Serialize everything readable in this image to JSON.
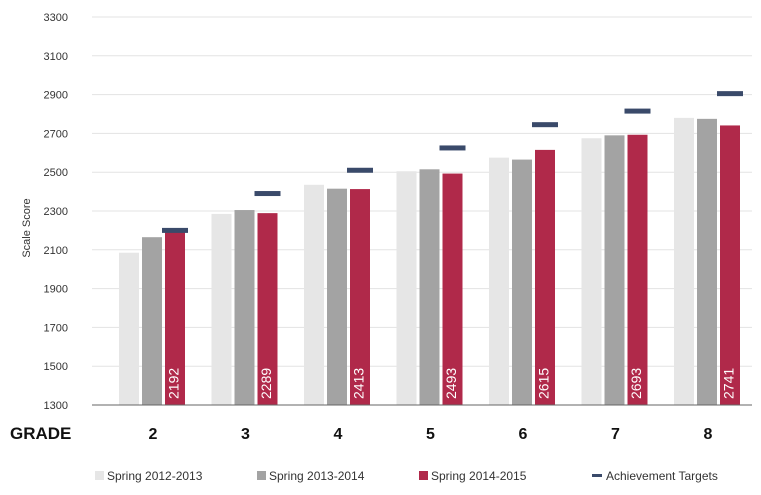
{
  "chart_data": {
    "type": "bar",
    "xlabel": "GRADE",
    "ylabel": "Scale Score",
    "ylim": [
      1300,
      3300
    ],
    "yticks": [
      1300,
      1500,
      1700,
      1900,
      2100,
      2300,
      2500,
      2700,
      2900,
      3100,
      3300
    ],
    "categories": [
      "2",
      "3",
      "4",
      "5",
      "6",
      "7",
      "8"
    ],
    "series": [
      {
        "name": "Spring 2012-2013",
        "color": "#e6e6e6",
        "values": [
          2085,
          2285,
          2435,
          2505,
          2575,
          2675,
          2780
        ]
      },
      {
        "name": "Spring 2013-2014",
        "color": "#a3a3a3",
        "values": [
          2165,
          2305,
          2415,
          2515,
          2565,
          2690,
          2775
        ]
      },
      {
        "name": "Spring 2014-2015",
        "color": "#b0294a",
        "values": [
          2192,
          2289,
          2413,
          2493,
          2615,
          2693,
          2741
        ],
        "data_labels": [
          "2192",
          "2289",
          "2413",
          "2493",
          "2615",
          "2693",
          "2741"
        ]
      }
    ],
    "targets": {
      "name": "Achievement Targets",
      "color": "#3a4a6a",
      "values": [
        2200,
        2390,
        2510,
        2625,
        2745,
        2815,
        2905
      ]
    },
    "grid": true,
    "legend": "bottom"
  }
}
